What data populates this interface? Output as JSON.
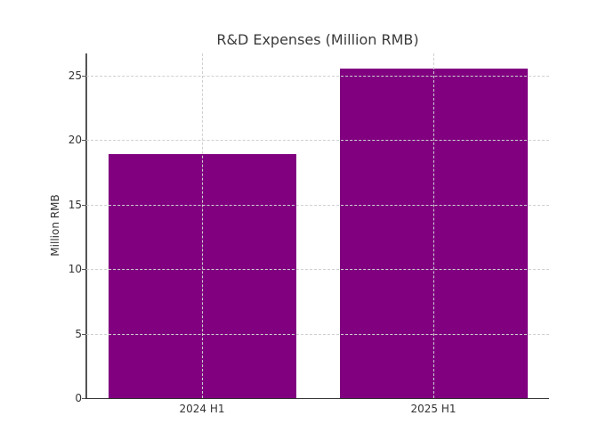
{
  "chart_data": {
    "type": "bar",
    "title": "R&D Expenses (Million RMB)",
    "xlabel": "",
    "ylabel": "Million RMB",
    "categories": [
      "2024 H1",
      "2025 H1"
    ],
    "values": [
      18.9,
      25.5
    ],
    "ylim": [
      0,
      26.7
    ],
    "yticks": [
      0,
      5,
      10,
      15,
      20,
      25
    ],
    "grid": true,
    "legend": null,
    "bar_color": "#800080"
  }
}
